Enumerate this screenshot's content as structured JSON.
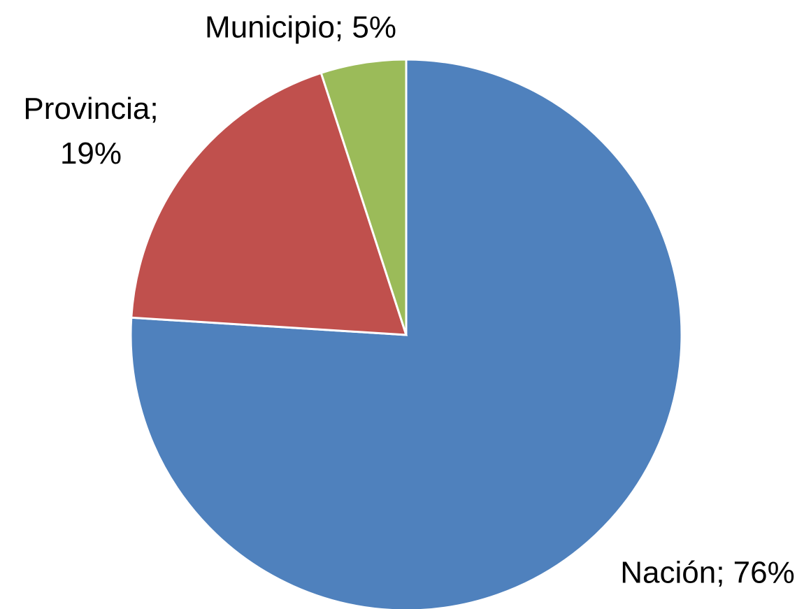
{
  "chart_data": {
    "type": "pie",
    "values": [
      76,
      19,
      5
    ],
    "value_labels": [
      "Nación; 76%",
      "Provincia; 19%",
      "Municipio; 5%"
    ],
    "colors": [
      "#4f81bd",
      "#c0504d",
      "#9bbb59"
    ]
  }
}
